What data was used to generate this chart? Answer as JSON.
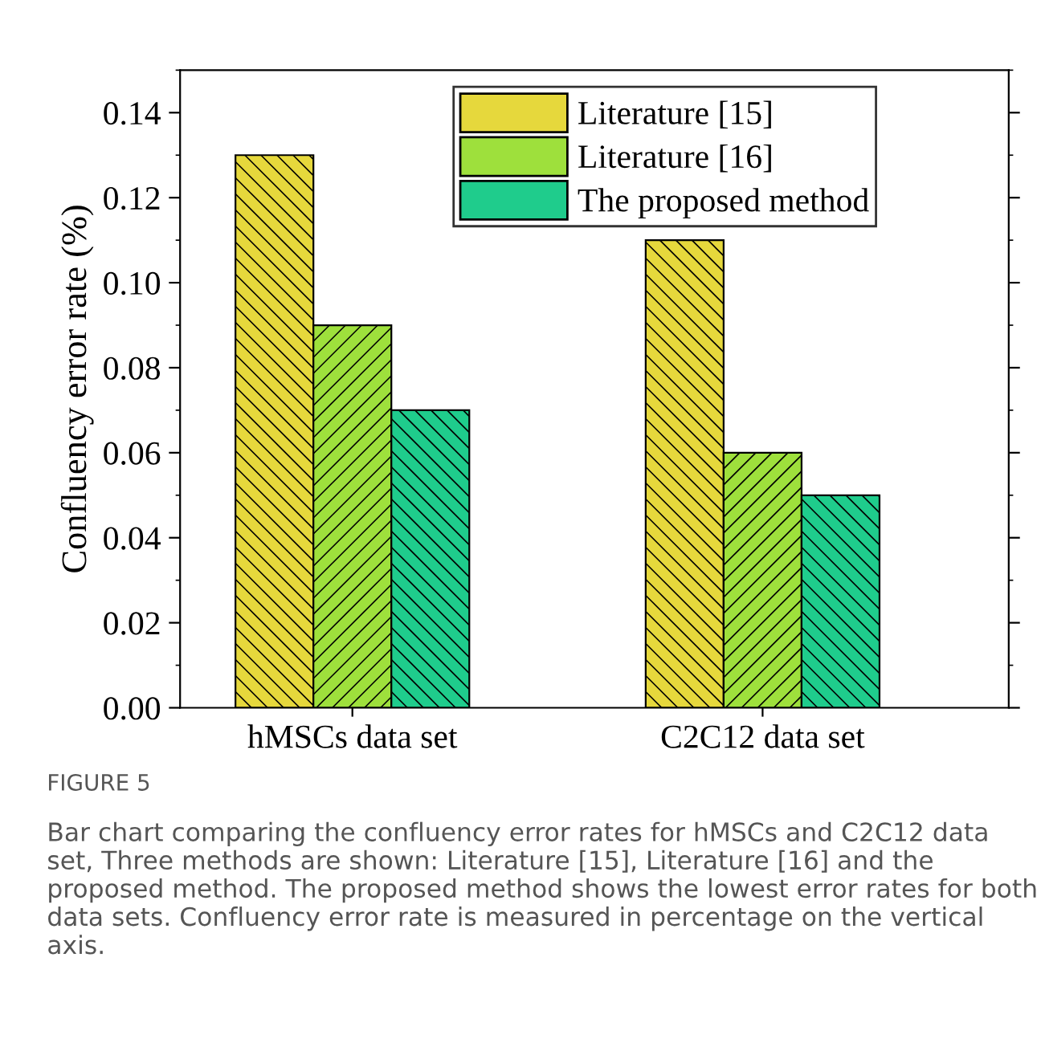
{
  "chart_data": {
    "type": "bar",
    "ylabel": "Confluency error rate (%)",
    "categories": [
      "hMSCs data set",
      "C2C12 data set"
    ],
    "series": [
      {
        "name": "Literature [15]",
        "color": "#e6d83c",
        "values": [
          0.13,
          0.11
        ]
      },
      {
        "name": "Literature [16]",
        "color": "#9ee03c",
        "values": [
          0.09,
          0.06
        ]
      },
      {
        "name": "The proposed method",
        "color": "#1fcc8c",
        "values": [
          0.07,
          0.05
        ]
      }
    ],
    "ylim": [
      0,
      0.15
    ],
    "yticks": [
      {
        "value": 0,
        "label": "0.00"
      },
      {
        "value": 0.02,
        "label": "0.02"
      },
      {
        "value": 0.04,
        "label": "0.04"
      },
      {
        "value": 0.06,
        "label": "0.06"
      },
      {
        "value": 0.08,
        "label": "0.08"
      },
      {
        "value": 0.1,
        "label": "0.10"
      },
      {
        "value": 0.12,
        "label": "0.12"
      },
      {
        "value": 0.14,
        "label": "0.14"
      }
    ],
    "grid": false,
    "legend": "top right",
    "annotations": [
      "FIGURE 5",
      "Bar chart comparing the confluency error rates for hMSCs and C2C12 data set, Three methods are shown: Literature [15], Literature [16] and the proposed method. The proposed method shows the lowest error rates for both data sets. Confluency error rate is measured in percentage on the vertical axis."
    ]
  }
}
